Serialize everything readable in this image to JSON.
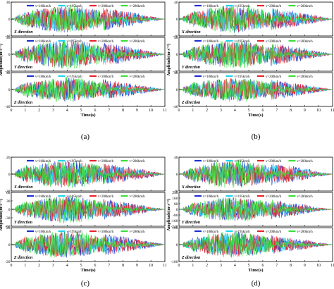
{
  "chart_data": [
    {
      "type": "line",
      "label": "(a)",
      "xlabel": "Time(s)",
      "ylabel": "Amplitude(m·s⁻²)",
      "xticks": [
        "0",
        "1",
        "2",
        "3",
        "4",
        "5",
        "6",
        "7",
        "8",
        "9",
        "10",
        "11"
      ],
      "xlim": [
        0,
        11
      ],
      "legend": [
        "v=180km/h",
        "v=195km/h",
        "v=200km/h",
        "v=280km/h"
      ],
      "colors": {
        "v180": "#1f2fd0",
        "v195": "#22d3ee",
        "v200": "#e8242c",
        "v280": "#38e038"
      },
      "panels": [
        {
          "direction": "X direction",
          "yticks": [
            "-40",
            "0",
            "40"
          ],
          "ylim": [
            -40,
            40
          ],
          "env": [
            34,
            22,
            30,
            10
          ]
        },
        {
          "direction": "Y direction",
          "yticks": [
            "-40",
            "0",
            "40"
          ],
          "ylim": [
            -40,
            40
          ],
          "env": [
            36,
            24,
            30,
            12
          ]
        },
        {
          "direction": "Z direction",
          "yticks": [
            "-40",
            "0",
            "40"
          ],
          "ylim": [
            -40,
            40
          ],
          "env": [
            30,
            20,
            26,
            10
          ]
        }
      ]
    },
    {
      "type": "line",
      "label": "(b)",
      "xlabel": "Time(s)",
      "ylabel": "Amplitude(m·s⁻²)",
      "xticks": [
        "0",
        "1",
        "2",
        "3",
        "4",
        "5",
        "6",
        "7",
        "8",
        "9",
        "10",
        "11"
      ],
      "xlim": [
        0,
        11
      ],
      "legend": [
        "v=180km/h",
        "v=195km/h",
        "v=200km/h",
        "v=280km/h"
      ],
      "colors": {
        "v180": "#1f2fd0",
        "v195": "#22d3ee",
        "v200": "#e8242c",
        "v280": "#38e038"
      },
      "panels": [
        {
          "direction": "X direction",
          "yticks": [
            "-40",
            "0",
            "40"
          ],
          "ylim": [
            -40,
            40
          ],
          "env": [
            34,
            22,
            30,
            12
          ]
        },
        {
          "direction": "Y direction",
          "yticks": [
            "-40",
            "0",
            "40"
          ],
          "ylim": [
            -40,
            40
          ],
          "env": [
            34,
            22,
            30,
            12
          ]
        },
        {
          "direction": "Z direction",
          "yticks": [
            "-40",
            "0",
            "40"
          ],
          "ylim": [
            -40,
            40
          ],
          "env": [
            30,
            20,
            26,
            10
          ]
        }
      ]
    },
    {
      "type": "line",
      "label": "(c)",
      "xlabel": "Time(s)",
      "ylabel": "Amplitude(m·s⁻²)",
      "xticks": [
        "0",
        "1",
        "2",
        "3",
        "4",
        "5",
        "6",
        "7",
        "8",
        "9",
        "10",
        "11"
      ],
      "xlim": [
        0,
        11
      ],
      "legend": [
        "v=180km/h",
        "v=195km/h",
        "v=200km/h",
        "v=280km/h"
      ],
      "colors": {
        "v180": "#1f2fd0",
        "v195": "#22d3ee",
        "v200": "#e8242c",
        "v280": "#38e038"
      },
      "panels": [
        {
          "direction": "X direction",
          "yticks": [
            "-20",
            "0",
            "20"
          ],
          "ylim": [
            -20,
            20
          ],
          "env": [
            17,
            12,
            14,
            6
          ]
        },
        {
          "direction": "Y direction",
          "yticks": [
            "-60",
            "-30",
            "0",
            "30",
            "60"
          ],
          "ylim": [
            -60,
            60
          ],
          "env": [
            50,
            34,
            40,
            14
          ]
        },
        {
          "direction": "Z direction",
          "yticks": [
            "-20",
            "0",
            "20"
          ],
          "ylim": [
            -20,
            20
          ],
          "env": [
            17,
            12,
            14,
            6
          ]
        }
      ]
    },
    {
      "type": "line",
      "label": "(d)",
      "xlabel": "Time(s)",
      "ylabel": "Amplitude(m·s⁻²)",
      "xticks": [
        "0",
        "1",
        "2",
        "3",
        "4",
        "5",
        "6",
        "7",
        "8",
        "9",
        "10",
        "11"
      ],
      "xlim": [
        0,
        11
      ],
      "legend": [
        "v=180km/h",
        "v=195km/h",
        "v=200km/h",
        "v=280km/h"
      ],
      "colors": {
        "v180": "#1f2fd0",
        "v195": "#22d3ee",
        "v200": "#e8242c",
        "v280": "#38e038"
      },
      "panels": [
        {
          "direction": "X direction",
          "yticks": [
            "-40",
            "0",
            "40"
          ],
          "ylim": [
            -40,
            40
          ],
          "env": [
            34,
            22,
            30,
            10
          ]
        },
        {
          "direction": "Y direction",
          "yticks": [
            "-240",
            "-160",
            "-80",
            "0",
            "80",
            "160",
            "240"
          ],
          "ylim": [
            -240,
            240
          ],
          "env": [
            180,
            110,
            150,
            40
          ]
        },
        {
          "direction": "Z direction",
          "yticks": [
            "-100",
            "0",
            "100"
          ],
          "ylim": [
            -100,
            100
          ],
          "env": [
            80,
            50,
            60,
            20
          ]
        }
      ]
    }
  ]
}
